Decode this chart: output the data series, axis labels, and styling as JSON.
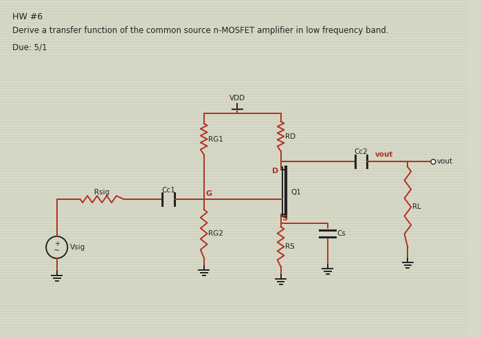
{
  "background_color": "#d8d9c8",
  "stripe_color": "#c8cbb8",
  "title_text": "HW #6",
  "subtitle_text": "Derive a transfer function of the common source n-MOSFET amplifier in low frequency band.",
  "due_text": "Due: 5/1",
  "line_color_red": "#b03020",
  "line_color_black": "#222222",
  "text_color": "#222222",
  "red_text_color": "#b03020",
  "label_fontsize": 7.5,
  "header_fontsize": 8.5
}
